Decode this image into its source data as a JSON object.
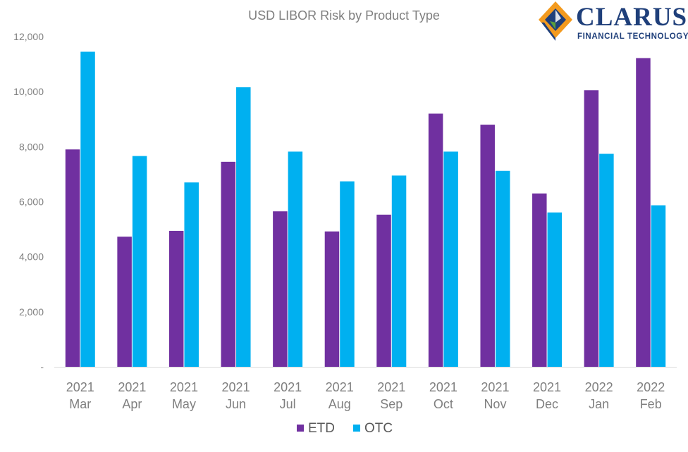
{
  "chart_data": {
    "type": "bar",
    "title": "USD LIBOR Risk by Product Type",
    "categories": [
      [
        "2021",
        "Mar"
      ],
      [
        "2021",
        "Apr"
      ],
      [
        "2021",
        "May"
      ],
      [
        "2021",
        "Jun"
      ],
      [
        "2021",
        "Jul"
      ],
      [
        "2021",
        "Aug"
      ],
      [
        "2021",
        "Sep"
      ],
      [
        "2021",
        "Oct"
      ],
      [
        "2021",
        "Nov"
      ],
      [
        "2021",
        "Dec"
      ],
      [
        "2022",
        "Jan"
      ],
      [
        "2022",
        "Feb"
      ]
    ],
    "series": [
      {
        "name": "ETD",
        "color": "#7030a0",
        "values": [
          7900,
          4730,
          4940,
          7450,
          5650,
          4920,
          5530,
          9200,
          8800,
          6300,
          10050,
          11220
        ]
      },
      {
        "name": "OTC",
        "color": "#00b0f0",
        "values": [
          11450,
          7660,
          6700,
          10160,
          7820,
          6740,
          6950,
          7820,
          7120,
          5610,
          7740,
          5870
        ]
      }
    ],
    "ylim": [
      0,
      12000
    ],
    "yticks": [
      0,
      2000,
      4000,
      6000,
      8000,
      10000,
      12000
    ],
    "ytick_labels": [
      "-",
      "2,000",
      "4,000",
      "6,000",
      "8,000",
      "10,000",
      "12,000"
    ],
    "grid": false,
    "legend_position": "bottom"
  },
  "logo": {
    "name": "CLARUS",
    "tagline": "FINANCIAL TECHNOLOGY",
    "colors": {
      "orange": "#f39a1e",
      "blue": "#1f3f7a",
      "green": "#5a9e3b"
    }
  }
}
